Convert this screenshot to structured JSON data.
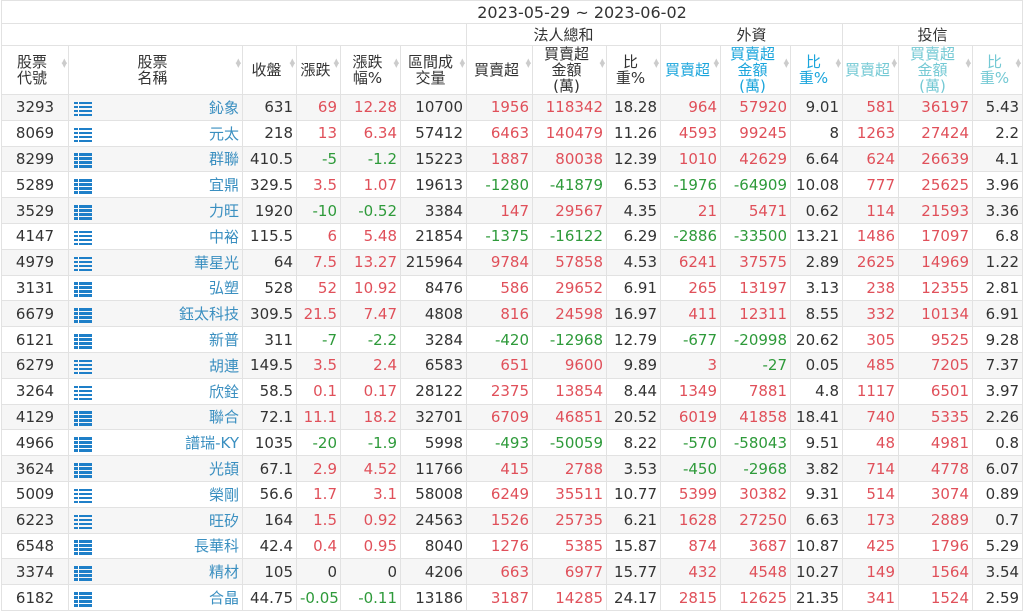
{
  "date_range": "2023-05-29 ~ 2023-06-02",
  "groups": {
    "total": "法人總和",
    "foreign": "外資",
    "trust": "投信"
  },
  "columns": [
    "股票代號",
    "股票名稱",
    "收盤",
    "漲跌",
    "漲跌幅%",
    "區間成交量",
    "買賣超",
    "買賣超金額(萬)",
    "比重%",
    "買賣超",
    "買賣超金額(萬)",
    "比重%",
    "買賣超",
    "買賣超金額(萬)",
    "比重%"
  ],
  "column_lines": [
    [
      "股票",
      "代號"
    ],
    [
      "股票",
      "名稱"
    ],
    [
      "收盤"
    ],
    [
      "漲跌"
    ],
    [
      "漲跌幅",
      "%"
    ],
    [
      "區間",
      "成交量"
    ],
    [
      "買賣超"
    ],
    [
      "買賣超",
      "金額(萬)"
    ],
    [
      "比重",
      "%"
    ],
    [
      "買賣超"
    ],
    [
      "買賣超",
      "金額(萬)"
    ],
    [
      "比重",
      "%"
    ],
    [
      "買賣超"
    ],
    [
      "買賣超",
      "金額(萬)"
    ],
    [
      "比重",
      "%"
    ]
  ],
  "colors": {
    "up": "#e0505a",
    "down": "#2e9a3a",
    "name": "#3a8fc0",
    "foreign_header": "#1aa5dc",
    "trust_header": "#74c9d4"
  },
  "row_icon": "list-icon",
  "rows": [
    [
      "3293",
      "鈊象",
      "631",
      "69",
      "12.28",
      "10700",
      "1956",
      "118342",
      "18.28",
      "964",
      "57920",
      "9.01",
      "581",
      "36197",
      "5.43"
    ],
    [
      "8069",
      "元太",
      "218",
      "13",
      "6.34",
      "57412",
      "6463",
      "140479",
      "11.26",
      "4593",
      "99245",
      "8",
      "1263",
      "27424",
      "2.2"
    ],
    [
      "8299",
      "群聯",
      "410.5",
      "-5",
      "-1.2",
      "15223",
      "1887",
      "80038",
      "12.39",
      "1010",
      "42629",
      "6.64",
      "624",
      "26639",
      "4.1"
    ],
    [
      "5289",
      "宜鼎",
      "329.5",
      "3.5",
      "1.07",
      "19613",
      "-1280",
      "-41879",
      "6.53",
      "-1976",
      "-64909",
      "10.08",
      "777",
      "25625",
      "3.96"
    ],
    [
      "3529",
      "力旺",
      "1920",
      "-10",
      "-0.52",
      "3384",
      "147",
      "29567",
      "4.35",
      "21",
      "5471",
      "0.62",
      "114",
      "21593",
      "3.36"
    ],
    [
      "4147",
      "中裕",
      "115.5",
      "6",
      "5.48",
      "21854",
      "-1375",
      "-16122",
      "6.29",
      "-2886",
      "-33500",
      "13.21",
      "1486",
      "17097",
      "6.8"
    ],
    [
      "4979",
      "華星光",
      "64",
      "7.5",
      "13.27",
      "215964",
      "9784",
      "57858",
      "4.53",
      "6241",
      "37575",
      "2.89",
      "2625",
      "14969",
      "1.22"
    ],
    [
      "3131",
      "弘塑",
      "528",
      "52",
      "10.92",
      "8476",
      "586",
      "29652",
      "6.91",
      "265",
      "13197",
      "3.13",
      "238",
      "12355",
      "2.81"
    ],
    [
      "6679",
      "鈺太科技",
      "309.5",
      "21.5",
      "7.47",
      "4808",
      "816",
      "24598",
      "16.97",
      "411",
      "12311",
      "8.55",
      "332",
      "10134",
      "6.91"
    ],
    [
      "6121",
      "新普",
      "311",
      "-7",
      "-2.2",
      "3284",
      "-420",
      "-12968",
      "12.79",
      "-677",
      "-20998",
      "20.62",
      "305",
      "9525",
      "9.28"
    ],
    [
      "6279",
      "胡連",
      "149.5",
      "3.5",
      "2.4",
      "6583",
      "651",
      "9600",
      "9.89",
      "3",
      "-27",
      "0.05",
      "485",
      "7205",
      "7.37"
    ],
    [
      "3264",
      "欣銓",
      "58.5",
      "0.1",
      "0.17",
      "28122",
      "2375",
      "13854",
      "8.44",
      "1349",
      "7881",
      "4.8",
      "1117",
      "6501",
      "3.97"
    ],
    [
      "4129",
      "聯合",
      "72.1",
      "11.1",
      "18.2",
      "32701",
      "6709",
      "46851",
      "20.52",
      "6019",
      "41858",
      "18.41",
      "740",
      "5335",
      "2.26"
    ],
    [
      "4966",
      "譜瑞-KY",
      "1035",
      "-20",
      "-1.9",
      "5998",
      "-493",
      "-50059",
      "8.22",
      "-570",
      "-58043",
      "9.51",
      "48",
      "4981",
      "0.8"
    ],
    [
      "3624",
      "光頡",
      "67.1",
      "2.9",
      "4.52",
      "11766",
      "415",
      "2788",
      "3.53",
      "-450",
      "-2968",
      "3.82",
      "714",
      "4778",
      "6.07"
    ],
    [
      "5009",
      "榮剛",
      "56.6",
      "1.7",
      "3.1",
      "58008",
      "6249",
      "35511",
      "10.77",
      "5399",
      "30382",
      "9.31",
      "514",
      "3074",
      "0.89"
    ],
    [
      "6223",
      "旺矽",
      "164",
      "1.5",
      "0.92",
      "24563",
      "1526",
      "25735",
      "6.21",
      "1628",
      "27250",
      "6.63",
      "173",
      "2889",
      "0.7"
    ],
    [
      "6548",
      "長華科",
      "42.4",
      "0.4",
      "0.95",
      "8040",
      "1276",
      "5385",
      "15.87",
      "874",
      "3687",
      "10.87",
      "425",
      "1796",
      "5.29"
    ],
    [
      "3374",
      "精材",
      "105",
      "0",
      "0",
      "4206",
      "663",
      "6977",
      "15.77",
      "432",
      "4548",
      "10.27",
      "149",
      "1564",
      "3.54"
    ],
    [
      "6182",
      "合晶",
      "44.75",
      "-0.05",
      "-0.11",
      "13186",
      "3187",
      "14285",
      "24.17",
      "2815",
      "12625",
      "21.35",
      "341",
      "1524",
      "2.59"
    ]
  ]
}
